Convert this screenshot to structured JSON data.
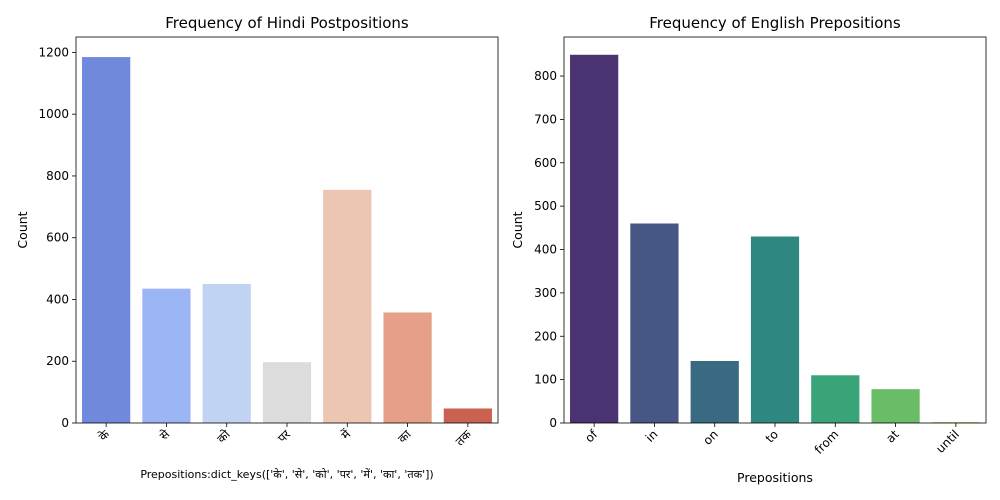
{
  "chart_data": [
    {
      "type": "bar",
      "title": "Frequency of Hindi Postpositions",
      "xlabel": "Prepositions:dict_keys(['के', 'से', 'को', 'पर', 'में', 'का', 'तक'])",
      "ylabel": "Count",
      "categories": [
        "के",
        "से",
        "को",
        "पर",
        "में",
        "का",
        "तक"
      ],
      "values": [
        1185,
        435,
        450,
        197,
        755,
        358,
        47
      ],
      "colors": [
        "#7189dd",
        "#9cb5f5",
        "#c1d3f2",
        "#dcdcdc",
        "#edc5b3",
        "#e6a088",
        "#cb6150"
      ],
      "ylim": [
        0,
        1250
      ],
      "yticks": [
        0,
        200,
        400,
        600,
        800,
        1000,
        1200
      ],
      "grid": false,
      "legend": "none"
    },
    {
      "type": "bar",
      "title": "Frequency of English Prepositions",
      "xlabel": "Prepositions",
      "ylabel": "Count",
      "categories": [
        "of",
        "in",
        "on",
        "to",
        "from",
        "at",
        "until"
      ],
      "values": [
        849,
        460,
        143,
        430,
        110,
        78,
        2
      ],
      "colors": [
        "#4a3371",
        "#465785",
        "#3a6a81",
        "#2e8780",
        "#3aa479",
        "#69bd67",
        "#c8d646"
      ],
      "ylim": [
        0,
        890
      ],
      "yticks": [
        0,
        100,
        200,
        300,
        400,
        500,
        600,
        700,
        800
      ],
      "grid": false,
      "legend": "none"
    }
  ]
}
